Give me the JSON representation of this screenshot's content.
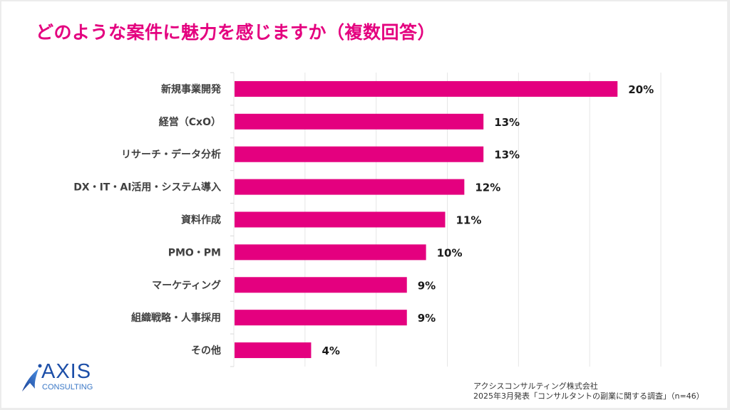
{
  "title": "どのような案件に魅力を感じますか（複数回答）",
  "colors": {
    "accent": "#e4007f",
    "grid": "#e6e6e6",
    "label": "#404040"
  },
  "chart_data": {
    "type": "bar",
    "orientation": "horizontal",
    "title": "どのような案件に魅力を感じますか（複数回答）",
    "xlabel": "",
    "ylabel": "",
    "categories": [
      "新規事業開発",
      "経営（CxO）",
      "リサーチ・データ分析",
      "DX・IT・AI活用・システム導入",
      "資料作成",
      "PMO・PM",
      "マーケティング",
      "組織戦略・人事採用",
      "その他"
    ],
    "values": [
      20,
      13,
      13,
      12,
      11,
      10,
      9,
      9,
      4
    ],
    "value_labels": [
      "20%",
      "13%",
      "13%",
      "12%",
      "11%",
      "10%",
      "9%",
      "9%",
      "4%"
    ],
    "unit": "%",
    "xlim": [
      0,
      22.3
    ],
    "grid": true,
    "gridline_count": 6,
    "legend": "none"
  },
  "logo": {
    "word": "AXIS",
    "sub": "CONSULTING",
    "icon": "rocket-swoosh-icon"
  },
  "footer": {
    "line1": "アクシスコンサルティング株式会社",
    "line2": "2025年3月発表「コンサルタントの副業に関する調査」（n=46）"
  }
}
